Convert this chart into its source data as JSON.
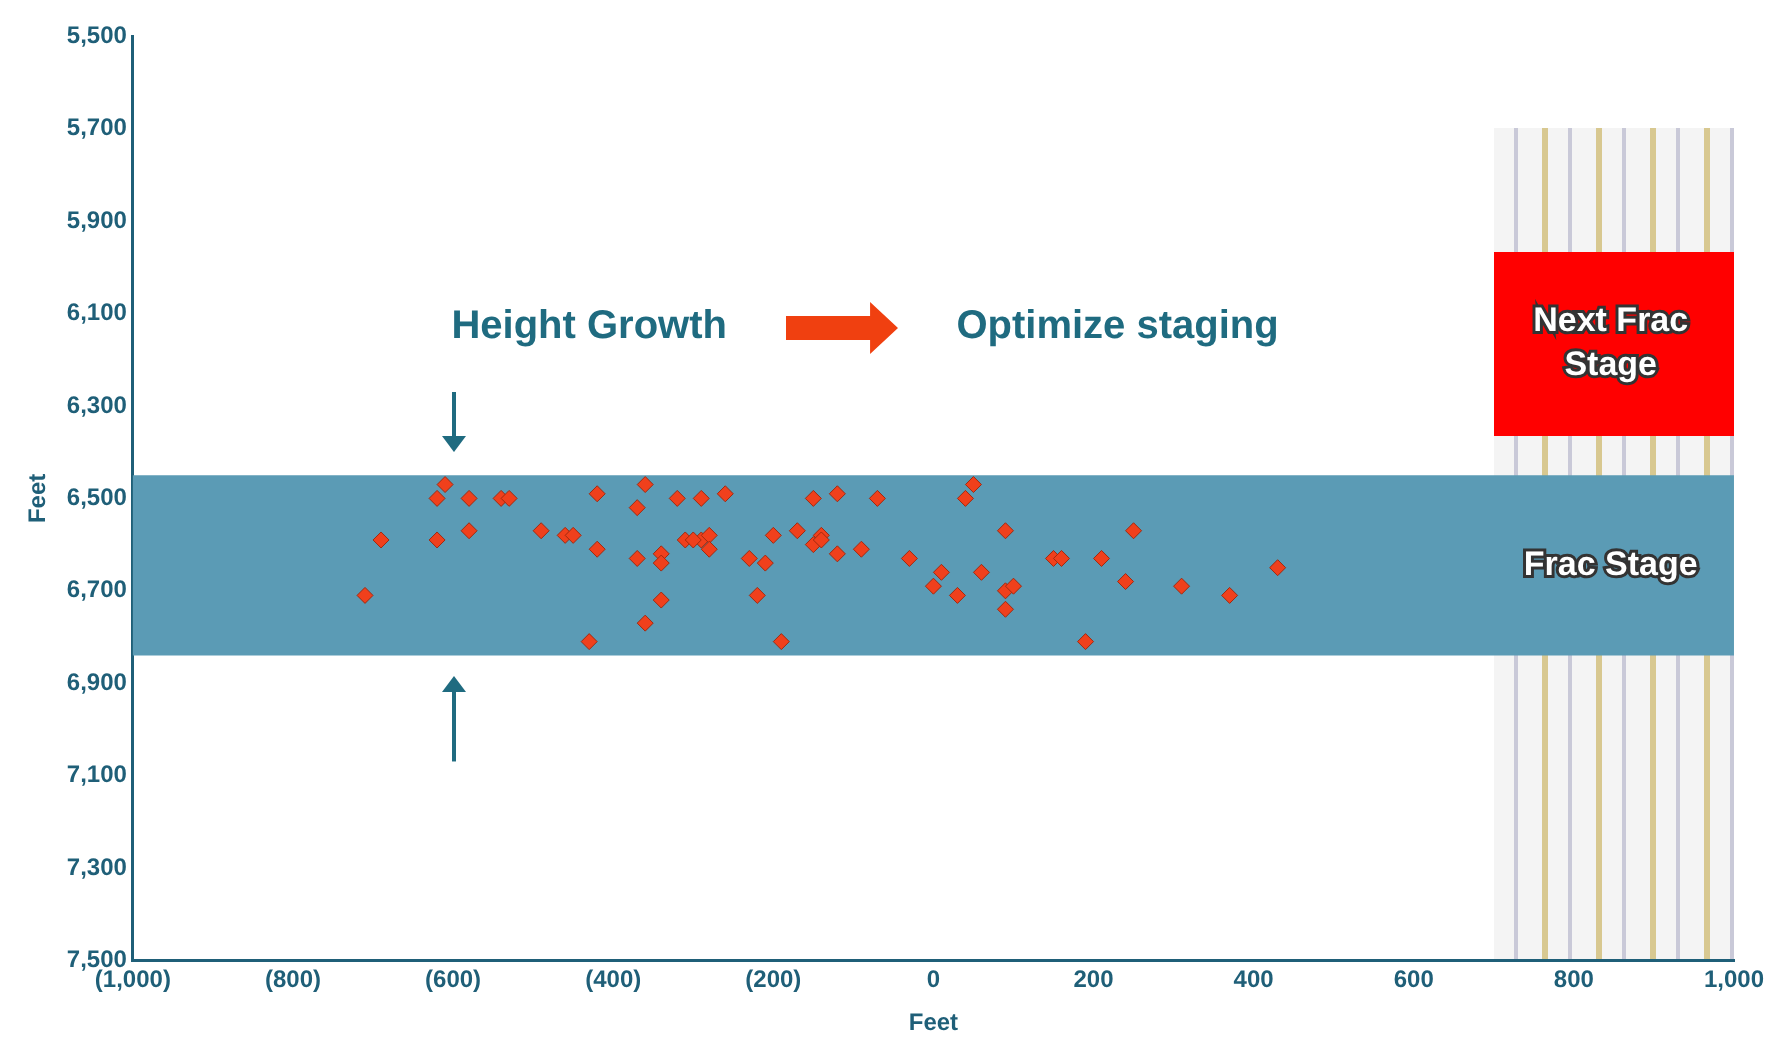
{
  "chart_data": {
    "type": "scatter",
    "xlabel": "Feet",
    "ylabel": "Feet",
    "xlim": [
      -1000,
      1000
    ],
    "ylim": [
      7500,
      5500
    ],
    "xticks": [
      {
        "value": -1000,
        "label": "(1,000)"
      },
      {
        "value": -800,
        "label": "(800)"
      },
      {
        "value": -600,
        "label": "(600)"
      },
      {
        "value": -400,
        "label": "(400)"
      },
      {
        "value": -200,
        "label": "(200)"
      },
      0,
      200,
      400,
      600,
      800,
      {
        "value": 1000,
        "label": "1,000"
      }
    ],
    "yticks": [
      {
        "value": 5500,
        "label": "5,500"
      },
      {
        "value": 5700,
        "label": "5,700"
      },
      {
        "value": 5900,
        "label": "5,900"
      },
      {
        "value": 6100,
        "label": "6,100"
      },
      {
        "value": 6300,
        "label": "6,300"
      },
      {
        "value": 6500,
        "label": "6,500"
      },
      {
        "value": 6700,
        "label": "6,700"
      },
      {
        "value": 6900,
        "label": "6,900"
      },
      {
        "value": 7100,
        "label": "7,100"
      },
      {
        "value": 7300,
        "label": "7,300"
      },
      {
        "value": 7500,
        "label": "7,500"
      }
    ],
    "x": [
      -610,
      -580,
      -540,
      -530,
      -620,
      -420,
      -360,
      -320,
      -290,
      -260,
      -150,
      -120,
      -70,
      50,
      40,
      -690,
      -620,
      -580,
      -490,
      -460,
      -450,
      -370,
      -340,
      -310,
      -290,
      -280,
      -340,
      -300,
      -280,
      -230,
      -210,
      -200,
      -170,
      -150,
      -140,
      -140,
      -120,
      -90,
      -30,
      10,
      30,
      0,
      60,
      90,
      90,
      100,
      150,
      160,
      210,
      250,
      240,
      310,
      370,
      430,
      -710,
      -340,
      -220,
      -360,
      90,
      -430,
      -190,
      190,
      -370,
      -420
    ],
    "values": [
      6470,
      6500,
      6500,
      6500,
      6500,
      6490,
      6470,
      6500,
      6500,
      6490,
      6500,
      6490,
      6500,
      6470,
      6500,
      6590,
      6590,
      6570,
      6570,
      6580,
      6580,
      6630,
      6620,
      6590,
      6590,
      6580,
      6640,
      6590,
      6610,
      6630,
      6640,
      6580,
      6570,
      6600,
      6580,
      6590,
      6620,
      6610,
      6630,
      6660,
      6710,
      6690,
      6660,
      6570,
      6700,
      6690,
      6630,
      6630,
      6630,
      6570,
      6680,
      6690,
      6710,
      6650,
      6710,
      6720,
      6710,
      6770,
      6740,
      6810,
      6810,
      6810,
      6520,
      6610
    ],
    "color": "#f0401c",
    "marker": "diamond",
    "grid": false,
    "legend": false,
    "bands": [
      {
        "axis": "y",
        "from": 6450,
        "to": 6840,
        "color": "#5b9bb5",
        "label": "Frac Stage"
      }
    ],
    "annotations": [
      "Height Growth",
      "Optimize staging",
      "Next Frac Stage"
    ]
  }
}
